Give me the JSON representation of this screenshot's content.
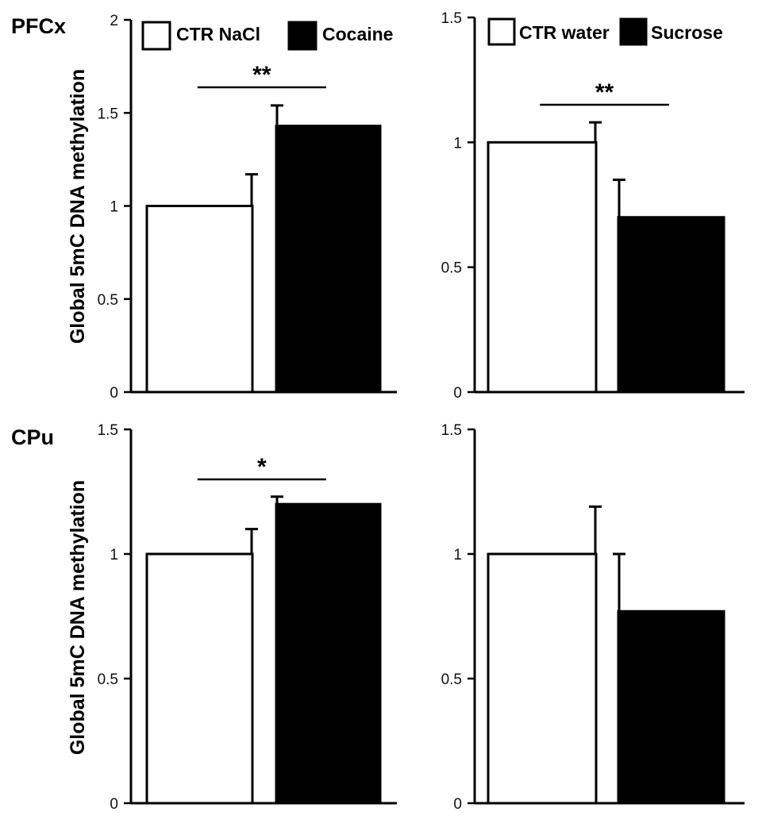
{
  "figure": {
    "ylabel": "Global 5mC DNA methylation",
    "regions": [
      "PFCx",
      "CPu"
    ]
  },
  "chart_data": [
    {
      "type": "bar",
      "panel": "PFCx cocaine",
      "region_label": "PFCx",
      "ylabel": "Global 5mC DNA methylation",
      "ylim": [
        0,
        2
      ],
      "yticks": [
        "0",
        "0.5",
        "1",
        "1.5",
        "2"
      ],
      "categories": [
        "CTR NaCl",
        "Cocaine"
      ],
      "values": [
        1.0,
        1.43
      ],
      "errors": [
        0.17,
        0.11
      ],
      "colors": [
        "#ffffff",
        "#000000"
      ],
      "legend": [
        "CTR NaCl",
        "Cocaine"
      ],
      "significance": "**"
    },
    {
      "type": "bar",
      "panel": "PFCx sucrose",
      "region_label": "",
      "ylabel": "",
      "ylim": [
        0,
        1.5
      ],
      "yticks": [
        "0",
        "0.5",
        "1",
        "1.5"
      ],
      "categories": [
        "CTR water",
        "Sucrose"
      ],
      "values": [
        1.0,
        0.7
      ],
      "errors": [
        0.08,
        0.15
      ],
      "colors": [
        "#ffffff",
        "#000000"
      ],
      "legend": [
        "CTR water",
        "Sucrose"
      ],
      "significance": "**"
    },
    {
      "type": "bar",
      "panel": "CPu cocaine",
      "region_label": "CPu",
      "ylabel": "Global 5mC DNA methylation",
      "ylim": [
        0,
        1.5
      ],
      "yticks": [
        "0",
        "0.5",
        "1",
        "1.5"
      ],
      "categories": [
        "CTR NaCl",
        "Cocaine"
      ],
      "values": [
        1.0,
        1.2
      ],
      "errors": [
        0.1,
        0.03
      ],
      "colors": [
        "#ffffff",
        "#000000"
      ],
      "legend": [],
      "significance": "*"
    },
    {
      "type": "bar",
      "panel": "CPu sucrose",
      "region_label": "",
      "ylabel": "",
      "ylim": [
        0,
        1.5
      ],
      "yticks": [
        "0",
        "0.5",
        "1",
        "1.5"
      ],
      "categories": [
        "CTR water",
        "Sucrose"
      ],
      "values": [
        1.0,
        0.77
      ],
      "errors": [
        0.19,
        0.23
      ],
      "colors": [
        "#ffffff",
        "#000000"
      ],
      "legend": [],
      "significance": ""
    }
  ]
}
